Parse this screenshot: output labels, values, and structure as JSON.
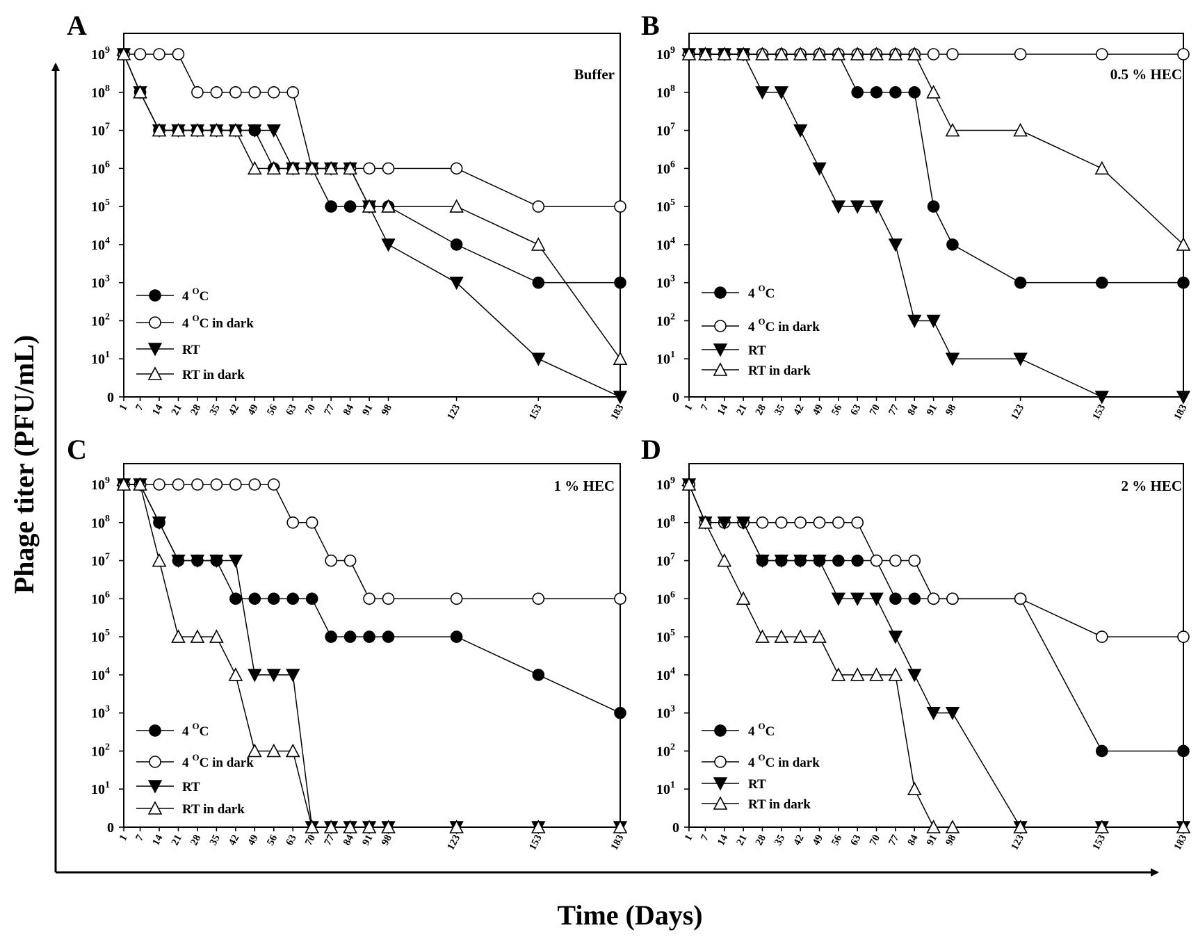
{
  "figure": {
    "ylabel": "Phage titer (PFU/mL)",
    "xlabel": "Time (Days)"
  },
  "colors": {
    "ink": "#000000",
    "background": "#ffffff"
  },
  "legend_entries": [
    {
      "name": "4 oC",
      "text": "4",
      "sup": "O",
      "rest": "C",
      "marker": "filled-circle"
    },
    {
      "name": "4 oC in dark",
      "text": "4",
      "sup": "O",
      "rest": "C in dark",
      "marker": "open-circle"
    },
    {
      "name": "RT",
      "text": "RT",
      "sup": "",
      "rest": "",
      "marker": "filled-triangle-down"
    },
    {
      "name": "RT in dark",
      "text": "RT in dark",
      "sup": "",
      "rest": "",
      "marker": "open-triangle-up"
    }
  ],
  "y_ticks": [
    {
      "base": "0",
      "exp": ""
    },
    {
      "base": "10",
      "exp": "1"
    },
    {
      "base": "10",
      "exp": "2"
    },
    {
      "base": "10",
      "exp": "3"
    },
    {
      "base": "10",
      "exp": "4"
    },
    {
      "base": "10",
      "exp": "5"
    },
    {
      "base": "10",
      "exp": "6"
    },
    {
      "base": "10",
      "exp": "7"
    },
    {
      "base": "10",
      "exp": "8"
    },
    {
      "base": "10",
      "exp": "9"
    }
  ],
  "chart_data": [
    {
      "panel": "A",
      "title": "Buffer",
      "type": "line",
      "xlabel": "Time (Days)",
      "ylabel": "Phage titer (PFU/mL)",
      "yscale": "log10 (0 plotted at bottom)",
      "ylim": [
        0,
        9
      ],
      "x": [
        1,
        7,
        14,
        21,
        28,
        35,
        42,
        49,
        56,
        63,
        70,
        77,
        84,
        91,
        98,
        123,
        153,
        183
      ],
      "series": [
        {
          "name": "4 oC",
          "values": [
            9,
            8,
            7,
            7,
            7,
            7,
            7,
            7,
            6,
            6,
            6,
            5,
            5,
            5,
            5,
            4,
            3,
            3
          ]
        },
        {
          "name": "4 oC in dark",
          "values": [
            9,
            9,
            9,
            9,
            8,
            8,
            8,
            8,
            8,
            8,
            6,
            6,
            6,
            6,
            6,
            6,
            5,
            5
          ]
        },
        {
          "name": "RT",
          "values": [
            9,
            8,
            7,
            7,
            7,
            7,
            7,
            7,
            7,
            6,
            6,
            6,
            6,
            5,
            4,
            3,
            1,
            0
          ]
        },
        {
          "name": "RT in dark",
          "values": [
            9,
            8,
            7,
            7,
            7,
            7,
            7,
            6,
            6,
            6,
            6,
            6,
            6,
            5,
            5,
            5,
            4,
            1
          ]
        }
      ]
    },
    {
      "panel": "B",
      "title": "0.5 % HEC",
      "type": "line",
      "xlabel": "Time (Days)",
      "ylabel": "Phage titer (PFU/mL)",
      "yscale": "log10 (0 plotted at bottom)",
      "ylim": [
        0,
        9
      ],
      "x": [
        1,
        7,
        14,
        21,
        28,
        35,
        42,
        49,
        56,
        63,
        70,
        77,
        84,
        91,
        98,
        123,
        153,
        183
      ],
      "series": [
        {
          "name": "4 oC",
          "values": [
            9,
            9,
            9,
            9,
            9,
            9,
            9,
            9,
            9,
            8,
            8,
            8,
            8,
            5,
            4,
            3,
            3,
            3
          ]
        },
        {
          "name": "4 oC in dark",
          "values": [
            9,
            9,
            9,
            9,
            9,
            9,
            9,
            9,
            9,
            9,
            9,
            9,
            9,
            9,
            9,
            9,
            9,
            9
          ]
        },
        {
          "name": "RT",
          "values": [
            9,
            9,
            9,
            9,
            8,
            8,
            7,
            6,
            5,
            5,
            5,
            4,
            2,
            2,
            1,
            1,
            0,
            0
          ]
        },
        {
          "name": "RT in dark",
          "values": [
            9,
            9,
            9,
            9,
            9,
            9,
            9,
            9,
            9,
            9,
            9,
            9,
            9,
            8,
            7,
            7,
            6,
            4
          ]
        }
      ]
    },
    {
      "panel": "C",
      "title": "1 % HEC",
      "type": "line",
      "xlabel": "Time (Days)",
      "ylabel": "Phage titer (PFU/mL)",
      "yscale": "log10 (0 plotted at bottom)",
      "ylim": [
        0,
        9
      ],
      "x": [
        1,
        7,
        14,
        21,
        28,
        35,
        42,
        49,
        56,
        63,
        70,
        77,
        84,
        91,
        98,
        123,
        153,
        183
      ],
      "series": [
        {
          "name": "4 oC",
          "values": [
            9,
            9,
            8,
            7,
            7,
            7,
            6,
            6,
            6,
            6,
            6,
            5,
            5,
            5,
            5,
            5,
            4,
            3
          ]
        },
        {
          "name": "4 oC in dark",
          "values": [
            9,
            9,
            9,
            9,
            9,
            9,
            9,
            9,
            9,
            8,
            8,
            7,
            7,
            6,
            6,
            6,
            6,
            6
          ]
        },
        {
          "name": "RT",
          "values": [
            9,
            9,
            8,
            7,
            7,
            7,
            7,
            4,
            4,
            4,
            0,
            0,
            0,
            0,
            0,
            0,
            0,
            0
          ]
        },
        {
          "name": "RT in dark",
          "values": [
            9,
            9,
            7,
            5,
            5,
            5,
            4,
            2,
            2,
            2,
            0,
            0,
            0,
            0,
            0,
            0,
            0,
            0
          ]
        }
      ]
    },
    {
      "panel": "D",
      "title": "2 % HEC",
      "type": "line",
      "xlabel": "Time (Days)",
      "ylabel": "Phage titer (PFU/mL)",
      "yscale": "log10 (0 plotted at bottom)",
      "ylim": [
        0,
        9
      ],
      "x": [
        1,
        7,
        14,
        21,
        28,
        35,
        42,
        49,
        56,
        63,
        70,
        77,
        84,
        91,
        98,
        123,
        153,
        183
      ],
      "series": [
        {
          "name": "4 oC",
          "values": [
            9,
            8,
            8,
            8,
            7,
            7,
            7,
            7,
            7,
            7,
            7,
            6,
            6,
            6,
            6,
            6,
            2,
            2
          ]
        },
        {
          "name": "4 oC in dark",
          "values": [
            9,
            8,
            8,
            8,
            8,
            8,
            8,
            8,
            8,
            8,
            7,
            7,
            7,
            6,
            6,
            6,
            5,
            5
          ]
        },
        {
          "name": "RT",
          "values": [
            9,
            8,
            8,
            8,
            7,
            7,
            7,
            7,
            6,
            6,
            6,
            5,
            4,
            3,
            3,
            0,
            0,
            0
          ]
        },
        {
          "name": "RT in dark",
          "values": [
            9,
            8,
            7,
            6,
            5,
            5,
            5,
            5,
            4,
            4,
            4,
            4,
            1,
            0,
            0,
            0,
            0,
            0
          ]
        }
      ]
    }
  ]
}
